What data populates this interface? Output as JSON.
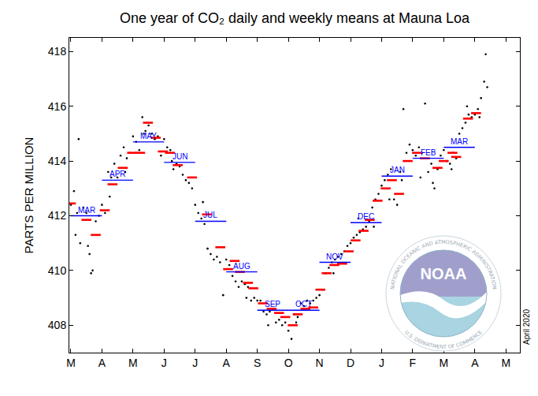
{
  "chart_data": {
    "type": "scatter",
    "title": "One year of CO₂ daily and weekly means at Mauna Loa",
    "y_label": "PARTS PER MILLION",
    "annotations": [
      "April 2020"
    ],
    "logo": {
      "name": "NOAA",
      "ring_top": "NATIONAL OCEANIC AND ATMOSPHERIC ADMINISTRATION",
      "ring_bottom": "U.S. DEPARTMENT OF COMMERCE"
    },
    "xlim": [
      -0.05,
      14.45
    ],
    "xticks": [
      {
        "value": 0,
        "label": "M"
      },
      {
        "value": 1,
        "label": "A"
      },
      {
        "value": 2,
        "label": "M"
      },
      {
        "value": 3,
        "label": "J"
      },
      {
        "value": 4,
        "label": "J"
      },
      {
        "value": 5,
        "label": "A"
      },
      {
        "value": 6,
        "label": "S"
      },
      {
        "value": 7,
        "label": "O"
      },
      {
        "value": 8,
        "label": "N"
      },
      {
        "value": 9,
        "label": "D"
      },
      {
        "value": 10,
        "label": "J"
      },
      {
        "value": 11,
        "label": "F"
      },
      {
        "value": 12,
        "label": "M"
      },
      {
        "value": 13,
        "label": "A"
      },
      {
        "value": 14,
        "label": "M"
      }
    ],
    "ylim": [
      407,
      418.5
    ],
    "yticks": [
      408,
      410,
      412,
      414,
      416,
      418
    ],
    "grid": false,
    "series": [
      {
        "type": "scatter",
        "color": "#000000",
        "marker": "dot",
        "x": [
          0.0,
          0.1,
          0.2,
          0.25,
          0.3,
          0.4,
          0.5,
          0.6,
          0.7,
          0.8,
          0.9,
          1.0,
          1.1,
          1.2,
          1.3,
          1.4,
          1.5,
          1.6,
          1.7,
          1.8,
          1.9,
          2.0,
          2.1,
          2.2,
          2.3,
          2.4,
          2.5,
          2.6,
          2.7,
          2.8,
          2.9,
          3.0,
          3.1,
          3.2,
          3.3,
          3.4,
          3.5,
          3.6,
          3.7,
          3.8,
          3.9,
          4.0,
          4.1,
          4.2,
          4.3,
          4.4,
          4.5,
          4.6,
          4.7,
          4.8,
          4.9,
          5.0,
          5.1,
          5.2,
          5.3,
          5.4,
          5.5,
          5.6,
          5.7,
          5.8,
          5.9,
          6.0,
          6.1,
          6.2,
          6.3,
          6.4,
          6.5,
          6.6,
          6.7,
          6.8,
          6.9,
          7.0,
          7.1,
          7.2,
          7.3,
          7.4,
          7.5,
          7.6,
          7.7,
          7.8,
          7.9,
          8.0,
          8.1,
          8.2,
          8.3,
          8.4,
          8.5,
          8.6,
          8.7,
          8.8,
          8.9,
          9.0,
          9.1,
          9.2,
          9.3,
          9.4,
          9.5,
          9.6,
          9.7,
          9.8,
          9.9,
          10.0,
          10.1,
          10.2,
          10.3,
          10.4,
          10.5,
          10.6,
          10.7,
          10.8,
          10.9,
          11.0,
          11.1,
          11.2,
          11.3,
          11.4,
          11.5,
          11.6,
          11.7,
          11.8,
          11.9,
          12.0,
          12.1,
          12.2,
          12.3,
          12.4,
          12.5,
          12.6,
          12.7,
          12.8,
          12.9,
          13.0,
          13.1,
          13.2,
          13.3,
          13.35,
          13.4,
          0.15,
          0.55,
          0.65,
          1.25,
          1.75,
          2.35,
          3.25,
          4.25,
          5.65,
          6.35,
          7.25,
          8.45,
          9.25,
          9.75,
          10.25,
          10.65,
          11.25,
          11.65,
          12.25,
          12.75,
          13.15
        ],
        "values": [
          412.4,
          412.9,
          412.1,
          414.8,
          411.0,
          412.3,
          412.1,
          410.6,
          410.0,
          411.8,
          412.0,
          412.4,
          412.1,
          413.6,
          413.4,
          413.9,
          413.4,
          414.2,
          414.5,
          414.1,
          414.3,
          414.9,
          414.7,
          414.4,
          415.6,
          415.1,
          415.3,
          415.0,
          414.8,
          414.9,
          414.2,
          414.8,
          414.5,
          414.4,
          413.7,
          413.9,
          413.8,
          413.5,
          413.3,
          413.2,
          413.0,
          412.4,
          412.1,
          411.9,
          411.7,
          410.8,
          410.6,
          410.4,
          410.5,
          410.3,
          409.1,
          410.4,
          410.2,
          409.8,
          409.6,
          409.4,
          409.6,
          409.5,
          409.4,
          408.9,
          409.0,
          408.9,
          408.9,
          408.5,
          408.4,
          408.5,
          408.6,
          408.1,
          408.2,
          408.0,
          408.1,
          407.8,
          407.5,
          408.4,
          408.3,
          408.8,
          408.7,
          408.9,
          408.8,
          408.9,
          409.0,
          409.1,
          409.3,
          409.9,
          410.1,
          410.3,
          410.4,
          410.5,
          410.6,
          410.7,
          410.9,
          411.0,
          411.2,
          411.3,
          411.4,
          411.5,
          411.6,
          411.8,
          412.3,
          412.6,
          412.8,
          413.1,
          413.3,
          413.5,
          413.7,
          412.6,
          412.4,
          413.6,
          415.9,
          414.3,
          414.6,
          414.4,
          414.2,
          414.5,
          414.3,
          416.1,
          413.6,
          413.9,
          413.0,
          413.7,
          414.2,
          414.4,
          414.0,
          413.9,
          414.3,
          414.1,
          415.0,
          415.2,
          415.4,
          415.7,
          415.6,
          415.7,
          415.9,
          416.3,
          416.9,
          417.9,
          416.7,
          411.3,
          410.9,
          409.9,
          412.7,
          413.6,
          415.0,
          414.0,
          412.5,
          409.0,
          408.0,
          408.1,
          409.9,
          411.9,
          411.6,
          412.6,
          413.3,
          413.4,
          413.2,
          413.7,
          416.0,
          415.6
        ]
      },
      {
        "type": "scatter",
        "color": "#ff0000",
        "marker": "dash",
        "x": [
          0.0,
          0.5,
          0.8,
          1.09,
          1.34,
          1.67,
          1.97,
          2.23,
          2.48,
          2.73,
          2.96,
          3.19,
          3.44,
          3.9,
          4.38,
          4.81,
          5.06,
          5.27,
          5.44,
          5.7,
          5.87,
          6.18,
          6.46,
          6.7,
          6.9,
          7.14,
          7.3,
          7.55,
          7.8,
          8.03,
          8.23,
          8.48,
          8.73,
          8.94,
          9.16,
          9.42,
          9.62,
          9.87,
          10.13,
          10.33,
          10.56,
          10.84,
          11.14,
          11.39,
          11.8,
          12.0,
          12.28,
          12.4,
          12.78,
          13.04
        ],
        "values": [
          412.45,
          411.85,
          411.3,
          412.2,
          413.15,
          413.75,
          414.3,
          414.3,
          415.4,
          414.85,
          414.35,
          414.3,
          413.85,
          413.4,
          412.05,
          410.85,
          410.05,
          410.35,
          409.95,
          409.55,
          409.35,
          408.8,
          408.6,
          408.45,
          408.3,
          408.0,
          408.4,
          408.6,
          408.65,
          409.3,
          409.9,
          410.2,
          410.25,
          410.7,
          411.1,
          411.45,
          411.85,
          412.55,
          413.0,
          413.3,
          412.8,
          414.0,
          414.3,
          414.1,
          413.75,
          414.0,
          414.3,
          414.15,
          415.55,
          415.75
        ]
      },
      {
        "type": "segments",
        "color": "#0000ff",
        "x": [
          0,
          1,
          2,
          3,
          4,
          5,
          6,
          7,
          8,
          9,
          10,
          11,
          12
        ],
        "x_end": [
          1,
          2,
          3,
          4,
          5,
          6,
          7,
          8,
          9,
          10,
          11,
          12,
          13
        ],
        "values": [
          412.0,
          413.3,
          414.7,
          413.95,
          411.8,
          409.95,
          408.55,
          408.55,
          410.3,
          411.75,
          413.45,
          414.1,
          414.5
        ],
        "labels": [
          "MAR",
          "APR",
          "MAY",
          "JUN",
          "JUL",
          "AUG",
          "SEP",
          "OCT",
          "NOV",
          "DEC",
          "JAN",
          "FEB",
          "MAR"
        ]
      }
    ]
  }
}
